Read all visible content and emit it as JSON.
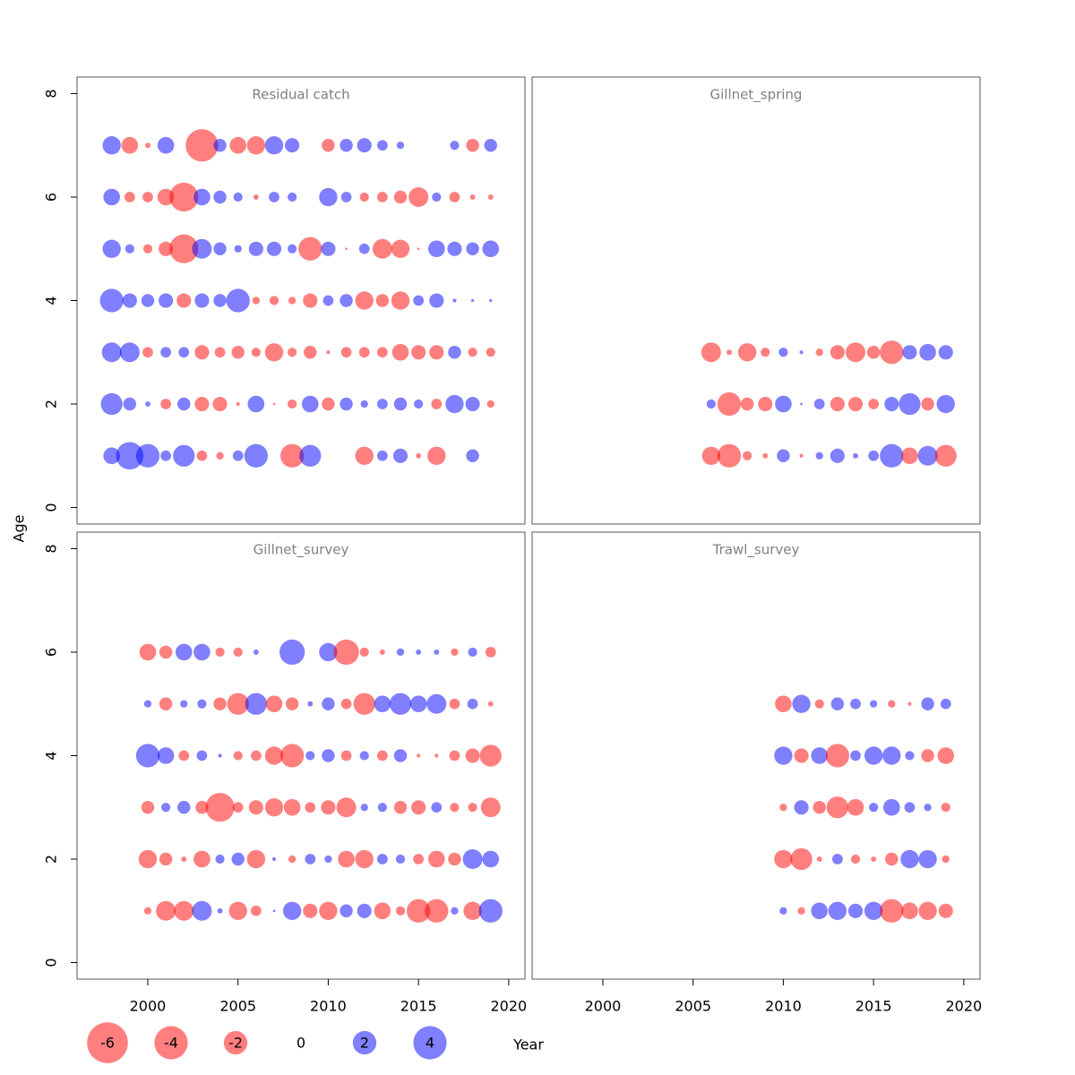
{
  "chart_data": {
    "type": "bubble",
    "xlabel": "Year",
    "ylabel": "Age",
    "xlim": [
      1996.08,
      2020.9
    ],
    "ylim": [
      -0.32,
      8.32
    ],
    "xticks": [
      2000,
      2005,
      2010,
      2015,
      2020
    ],
    "yticks": [
      0,
      2,
      4,
      6,
      8
    ],
    "positive_color": "#0000FF",
    "negative_color": "#FF0000",
    "legend": {
      "values": [
        -6,
        -4,
        -2,
        0,
        2,
        4
      ]
    },
    "panels": [
      {
        "title": "Residual catch",
        "x": [
          1998,
          1999,
          2000,
          2001,
          2002,
          2003,
          2004,
          2005,
          2006,
          2007,
          2008,
          2009,
          2010,
          2011,
          2012,
          2013,
          2014,
          2015,
          2016,
          2017,
          2018,
          2019
        ],
        "ages": [
          7,
          6,
          5,
          4,
          3,
          2,
          1
        ],
        "values": [
          [
            1.2,
            -1.0,
            -0.1,
            1.0,
            null,
            -3.8,
            0.6,
            -1.0,
            -1.2,
            1.2,
            0.75,
            null,
            -0.6,
            0.6,
            0.75,
            0.4,
            0.2,
            null,
            null,
            0.3,
            -0.6,
            0.6
          ],
          [
            1.0,
            -0.4,
            -0.4,
            -1.0,
            -3.0,
            1.0,
            0.6,
            0.3,
            -0.1,
            0.4,
            0.3,
            null,
            1.2,
            0.4,
            -0.3,
            -0.4,
            -0.6,
            -1.4,
            0.3,
            -0.4,
            -0.1,
            -0.1
          ],
          [
            1.2,
            0.3,
            -0.3,
            -0.75,
            -3.0,
            1.4,
            0.6,
            0.2,
            0.75,
            0.75,
            0.3,
            -2.0,
            0.75,
            -0.02,
            0.4,
            -1.4,
            -1.2,
            -0.02,
            1.0,
            0.75,
            0.6,
            1.0
          ],
          [
            2.0,
            0.75,
            0.6,
            0.75,
            -0.75,
            0.75,
            0.6,
            2.0,
            -0.2,
            -0.3,
            -0.2,
            -0.75,
            0.4,
            0.6,
            -1.2,
            -0.6,
            -1.2,
            0.4,
            0.75,
            0.05,
            0.03,
            0.03
          ],
          [
            1.4,
            1.4,
            -0.4,
            0.4,
            0.4,
            -0.75,
            -0.4,
            -0.6,
            -0.3,
            -1.2,
            -0.3,
            -0.6,
            -0.05,
            -0.4,
            -0.4,
            -0.4,
            -1.0,
            -0.75,
            -0.75,
            0.6,
            -0.3,
            -0.3
          ],
          [
            1.7,
            0.6,
            0.1,
            -0.4,
            0.6,
            -0.75,
            -0.75,
            -0.05,
            1.0,
            -0.02,
            -0.3,
            1.0,
            -0.6,
            0.6,
            0.2,
            0.4,
            0.6,
            0.3,
            -0.4,
            1.2,
            0.75,
            -0.2
          ],
          [
            1.0,
            2.7,
            2.0,
            0.4,
            1.7,
            -0.4,
            -0.2,
            0.4,
            2.0,
            null,
            -2.0,
            1.7,
            null,
            null,
            -1.2,
            0.4,
            0.75,
            -0.1,
            -1.2,
            null,
            0.6,
            null
          ]
        ]
      },
      {
        "title": "Gillnet_spring",
        "x": [
          2006,
          2007,
          2008,
          2009,
          2010,
          2011,
          2012,
          2013,
          2014,
          2015,
          2016,
          2017,
          2018,
          2019
        ],
        "ages": [
          3,
          2,
          1
        ],
        "values": [
          [
            -1.4,
            -0.1,
            -1.2,
            -0.3,
            0.3,
            0.05,
            -0.2,
            -0.75,
            -1.4,
            -0.6,
            -2.0,
            0.75,
            1.0,
            0.75
          ],
          [
            0.3,
            -2.0,
            -0.6,
            -0.75,
            1.0,
            0.02,
            0.4,
            -0.75,
            -0.75,
            -0.4,
            0.75,
            1.7,
            -0.6,
            1.2
          ],
          [
            -1.2,
            -2.0,
            -0.3,
            -0.1,
            0.6,
            -0.05,
            0.2,
            0.75,
            0.1,
            0.4,
            2.0,
            -1.0,
            1.4,
            -1.7
          ]
        ]
      },
      {
        "title": "Gillnet_survey",
        "x": [
          2000,
          2001,
          2002,
          2003,
          2004,
          2005,
          2006,
          2007,
          2008,
          2009,
          2010,
          2011,
          2012,
          2013,
          2014,
          2015,
          2016,
          2017,
          2018,
          2019
        ],
        "ages": [
          6,
          5,
          4,
          3,
          2,
          1
        ],
        "values": [
          [
            -1.0,
            -0.6,
            1.0,
            1.0,
            -0.3,
            -0.3,
            0.1,
            null,
            2.3,
            null,
            1.2,
            -2.3,
            -0.3,
            -0.1,
            0.2,
            0.1,
            0.1,
            -0.2,
            0.3,
            -0.4
          ],
          [
            0.2,
            -0.6,
            0.2,
            0.3,
            -0.6,
            -1.7,
            1.7,
            -1.0,
            -0.6,
            0.1,
            0.6,
            -0.4,
            -1.7,
            1.0,
            1.7,
            1.0,
            1.4,
            -0.4,
            0.4,
            -0.1
          ],
          [
            2.0,
            1.0,
            -0.4,
            0.4,
            0.05,
            -0.3,
            -0.4,
            -1.2,
            -2.0,
            0.3,
            0.6,
            -0.4,
            0.3,
            -0.4,
            0.6,
            -0.05,
            -0.05,
            -0.4,
            -0.75,
            -1.7
          ],
          [
            -0.6,
            0.3,
            0.6,
            -0.6,
            -3.0,
            -0.4,
            -0.75,
            -1.2,
            -1.0,
            -0.4,
            -0.75,
            -1.4,
            0.2,
            0.3,
            -0.6,
            -0.75,
            0.4,
            -0.3,
            -0.3,
            -1.4
          ],
          [
            -1.2,
            -0.6,
            -0.1,
            -1.0,
            0.3,
            0.6,
            -1.2,
            0.05,
            -0.2,
            0.4,
            0.2,
            -1.0,
            -1.2,
            0.4,
            0.3,
            -0.4,
            -1.0,
            -0.6,
            1.4,
            1.0
          ],
          [
            -0.2,
            -1.4,
            -1.4,
            1.4,
            0.1,
            -1.2,
            -0.4,
            0.02,
            1.2,
            -0.75,
            -1.2,
            0.6,
            0.75,
            -1.0,
            -0.3,
            -2.0,
            -2.0,
            0.2,
            -1.2,
            2.0
          ]
        ]
      },
      {
        "title": "Trawl_survey",
        "x": [
          2010,
          2011,
          2012,
          2013,
          2014,
          2015,
          2016,
          2017,
          2018,
          2019
        ],
        "ages": [
          5,
          4,
          3,
          2,
          1
        ],
        "values": [
          [
            -1.0,
            1.2,
            -0.3,
            0.6,
            0.4,
            0.2,
            -0.2,
            -0.05,
            0.6,
            0.4
          ],
          [
            1.2,
            -0.75,
            1.0,
            -2.0,
            0.4,
            1.2,
            1.2,
            0.3,
            -0.6,
            -1.0
          ],
          [
            -0.2,
            0.75,
            -0.6,
            -1.7,
            -1.0,
            0.3,
            1.0,
            0.4,
            0.2,
            -0.3
          ],
          [
            -1.2,
            -1.7,
            -0.1,
            0.4,
            -0.3,
            -0.1,
            -0.6,
            1.2,
            1.2,
            -0.2
          ],
          [
            0.2,
            -0.2,
            1.0,
            1.2,
            0.75,
            1.2,
            -2.0,
            -1.0,
            -1.2,
            -0.75
          ]
        ]
      }
    ]
  }
}
